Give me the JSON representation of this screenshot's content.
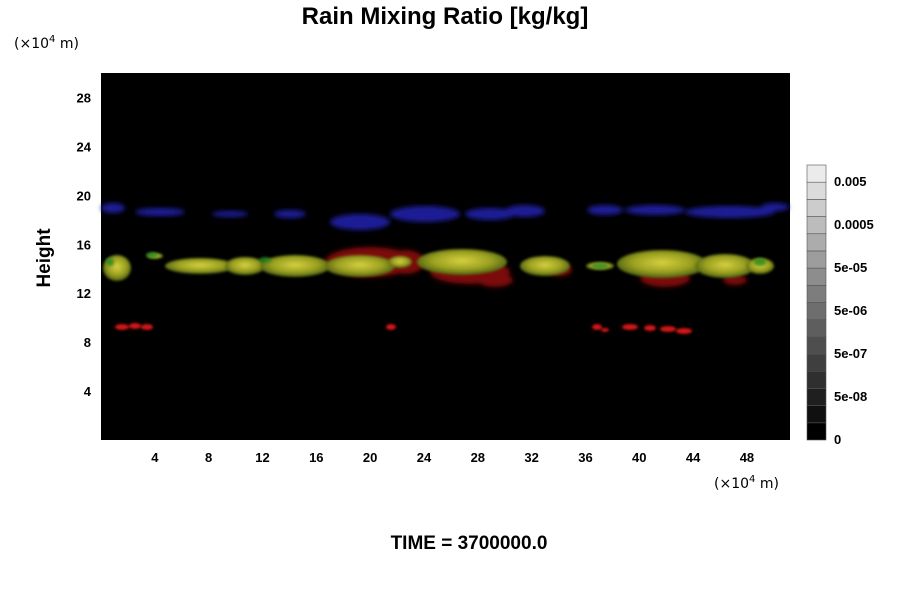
{
  "chart_data": {
    "type": "heatmap",
    "title": "Rain Mixing Ratio [kg/kg]",
    "ylabel": "Height",
    "x_unit": "(×10",
    "y_unit": "(×10",
    "unit_exp": "4",
    "unit_tail": " m)",
    "footer": "TIME = 3700000.0",
    "xlim": [
      0,
      51.2
    ],
    "ylim": [
      0,
      30
    ],
    "x_ticks": [
      4,
      8,
      12,
      16,
      20,
      24,
      28,
      32,
      36,
      40,
      44,
      48
    ],
    "y_ticks": [
      4,
      8,
      12,
      16,
      20,
      24,
      28
    ],
    "colorbar": {
      "levels": 16,
      "labels": [
        {
          "text": "0",
          "level": 0
        },
        {
          "text": "5e-08",
          "level": 2.5
        },
        {
          "text": "5e-07",
          "level": 5
        },
        {
          "text": "5e-06",
          "level": 7.5
        },
        {
          "text": "5e-05",
          "level": 10
        },
        {
          "text": "0.0005",
          "level": 12.5
        },
        {
          "text": "0.005",
          "level": 15
        }
      ]
    },
    "features": [
      {
        "band": "blue",
        "x": [
          0,
          51.2
        ],
        "y": [
          17,
          19.5
        ],
        "color": "#1a1a8c"
      },
      {
        "band": "yellow-green",
        "x": [
          0,
          51.2
        ],
        "y": [
          12.5,
          15.5
        ],
        "color": "#b8b020"
      },
      {
        "band": "red",
        "x": [
          0.8,
          4
        ],
        "y": [
          8.8,
          9.4
        ],
        "color": "#c01010"
      },
      {
        "band": "red",
        "x": [
          21,
          22
        ],
        "y": [
          8.8,
          9.4
        ],
        "color": "#c01010"
      },
      {
        "band": "red",
        "x": [
          36.5,
          44
        ],
        "y": [
          8.5,
          9.4
        ],
        "color": "#c01010"
      }
    ]
  }
}
